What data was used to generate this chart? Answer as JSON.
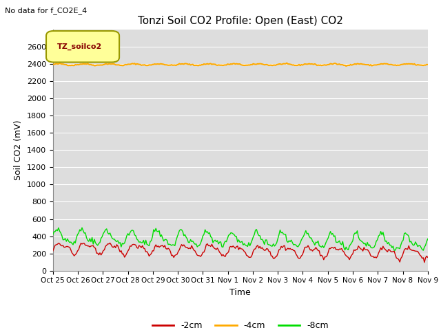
{
  "title": "Tonzi Soil CO2 Profile: Open (East) CO2",
  "no_data_text": "No data for f_CO2E_4",
  "legend_box_label": "TZ_soilco2",
  "ylabel": "Soil CO2 (mV)",
  "xlabel": "Time",
  "ylim": [
    0,
    2800
  ],
  "yticks": [
    0,
    200,
    400,
    600,
    800,
    1000,
    1200,
    1400,
    1600,
    1800,
    2000,
    2200,
    2400,
    2600
  ],
  "x_labels": [
    "Oct 25",
    "Oct 26",
    "Oct 27",
    "Oct 28",
    "Oct 29",
    "Oct 30",
    "Oct 31",
    "Nov 1",
    "Nov 2",
    "Nov 3",
    "Nov 4",
    "Nov 5",
    "Nov 6",
    "Nov 7",
    "Nov 8",
    "Nov 9"
  ],
  "n_points": 336,
  "orange_value": 2395,
  "red_mean": 265,
  "red_amp": 55,
  "green_mean": 390,
  "green_amp": 75,
  "color_red": "#cc0000",
  "color_orange": "#ffaa00",
  "color_green": "#00dd00",
  "legend_labels": [
    "-2cm",
    "-4cm",
    "-8cm"
  ],
  "bg_color": "#dddddd",
  "grid_color": "#ffffff",
  "legend_box_bg": "#ffff99",
  "legend_box_edge": "#999900",
  "fig_bg": "#ffffff",
  "title_fontsize": 11,
  "axis_fontsize": 9,
  "tick_fontsize": 8
}
